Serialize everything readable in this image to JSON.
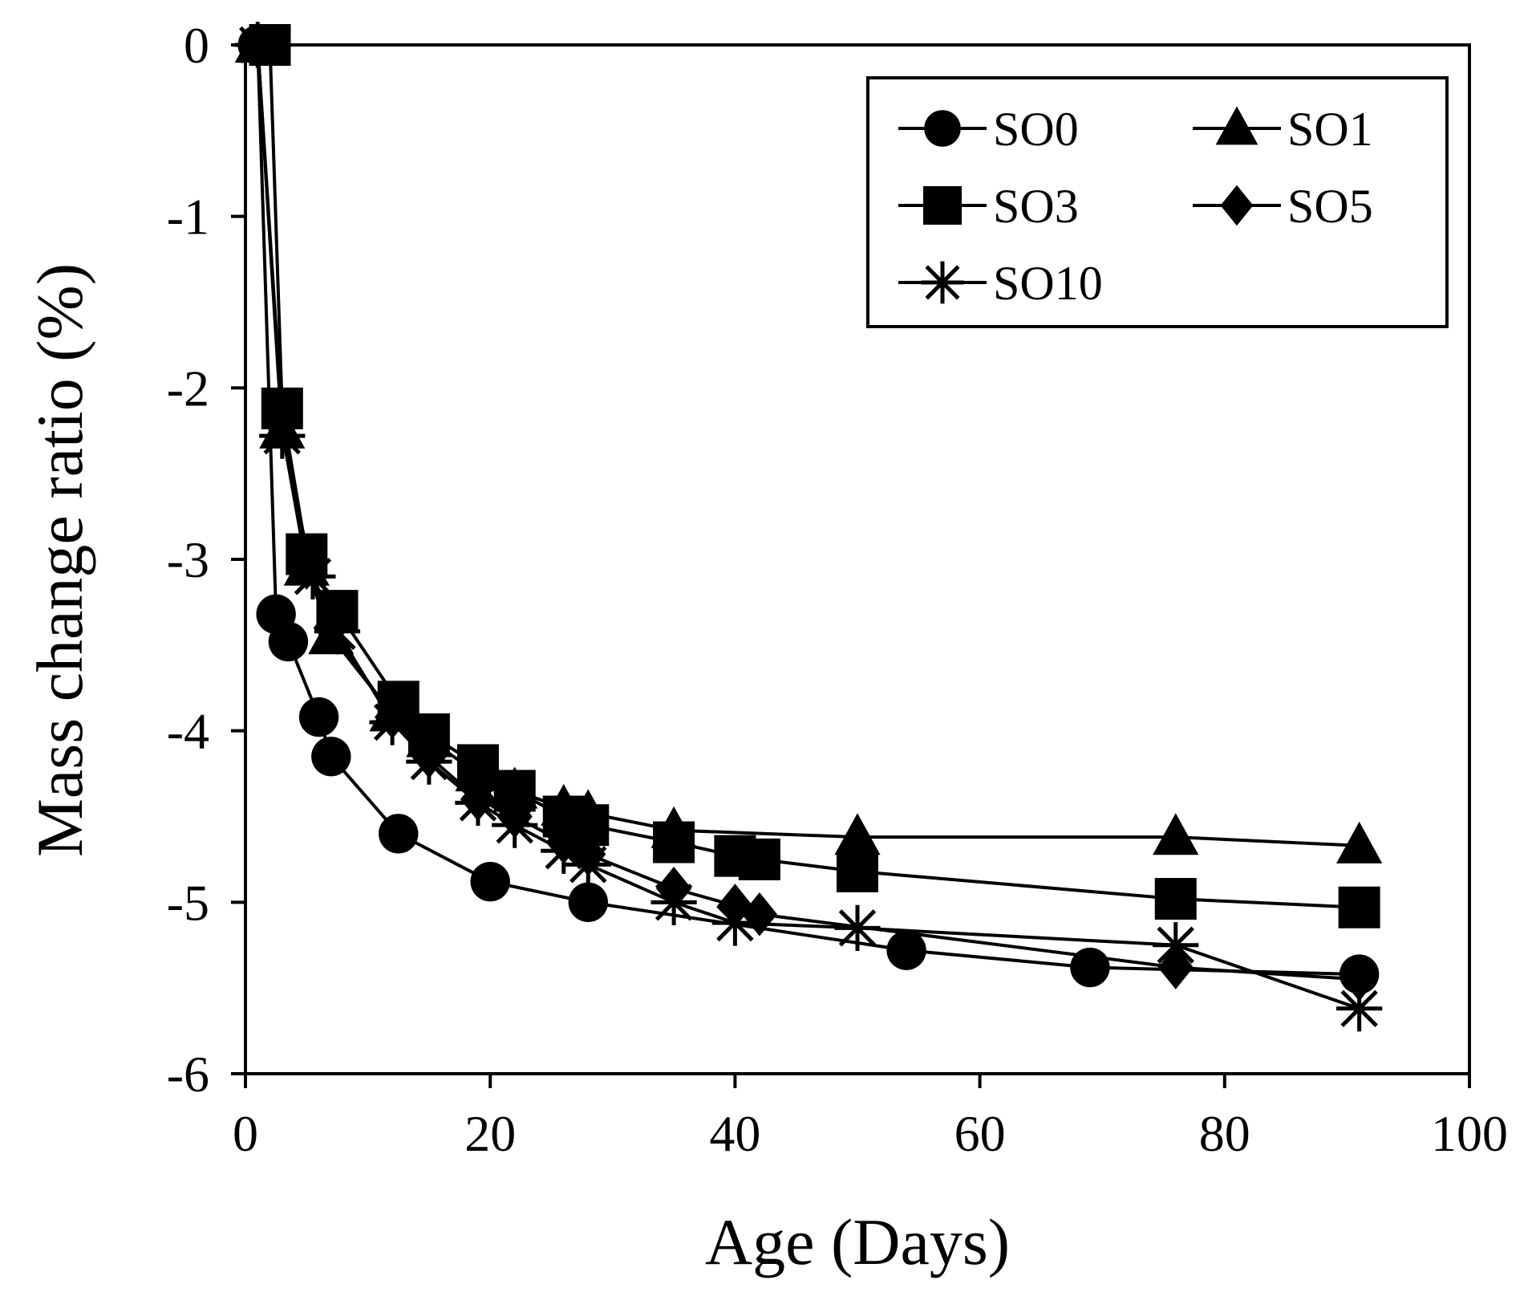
{
  "chart_data": {
    "type": "line",
    "title": "",
    "xlabel": "Age (Days)",
    "ylabel": "Mass change ratio (%)",
    "xlim": [
      0,
      100
    ],
    "ylim": [
      -6,
      0
    ],
    "xticks": [
      0,
      20,
      40,
      60,
      80,
      100
    ],
    "yticks": [
      0,
      -1,
      -2,
      -3,
      -4,
      -5,
      -6
    ],
    "grid": false,
    "legend_position": "top-right",
    "series": [
      {
        "name": "SO0",
        "marker": "circle",
        "x": [
          1,
          2.5,
          3.5,
          6,
          7,
          12.5,
          20,
          28,
          54,
          69,
          91
        ],
        "y": [
          0,
          -3.32,
          -3.48,
          -3.92,
          -4.15,
          -4.6,
          -4.88,
          -5.0,
          -5.28,
          -5.38,
          -5.42
        ]
      },
      {
        "name": "SO1",
        "marker": "triangle",
        "x": [
          1,
          3,
          5,
          7,
          12,
          15,
          19,
          22,
          26,
          28,
          35,
          50,
          76,
          91
        ],
        "y": [
          0,
          -2.25,
          -3.05,
          -3.45,
          -3.9,
          -4.05,
          -4.25,
          -4.35,
          -4.45,
          -4.48,
          -4.58,
          -4.62,
          -4.62,
          -4.67
        ]
      },
      {
        "name": "SO3",
        "marker": "square",
        "x": [
          2,
          3,
          5,
          7.5,
          12.5,
          15,
          19,
          22,
          26,
          28,
          35,
          40,
          42,
          50,
          76,
          91
        ],
        "y": [
          0,
          -2.12,
          -2.97,
          -3.3,
          -3.83,
          -4.02,
          -4.2,
          -4.35,
          -4.5,
          -4.55,
          -4.65,
          -4.73,
          -4.75,
          -4.82,
          -4.98,
          -5.03
        ]
      },
      {
        "name": "SO5",
        "marker": "diamond",
        "x": [
          1,
          3,
          5,
          7,
          12,
          15,
          19,
          22,
          26,
          28,
          35,
          40,
          42,
          76,
          91
        ],
        "y": [
          0,
          -2.2,
          -3.05,
          -3.4,
          -3.92,
          -4.15,
          -4.4,
          -4.5,
          -4.65,
          -4.72,
          -4.92,
          -5.02,
          -5.07,
          -5.38,
          -5.45
        ]
      },
      {
        "name": "SO10",
        "marker": "asterisk",
        "x": [
          1,
          3,
          5.5,
          7.5,
          12,
          15,
          19,
          22,
          26,
          28,
          35,
          40,
          50,
          76,
          91
        ],
        "y": [
          0,
          -2.28,
          -3.1,
          -3.42,
          -3.95,
          -4.18,
          -4.42,
          -4.55,
          -4.7,
          -4.78,
          -5.0,
          -5.12,
          -5.15,
          -5.25,
          -5.62
        ]
      }
    ]
  }
}
